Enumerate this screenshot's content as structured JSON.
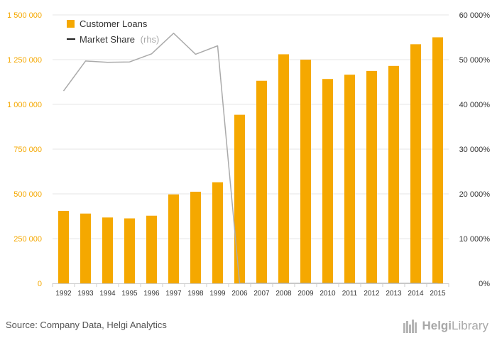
{
  "chart_data": {
    "type": "bar",
    "categories": [
      "1992",
      "1993",
      "1994",
      "1995",
      "1996",
      "1997",
      "1998",
      "1999",
      "2006",
      "2007",
      "2008",
      "2009",
      "2010",
      "2011",
      "2012",
      "2013",
      "2014",
      "2015"
    ],
    "series": [
      {
        "name": "Customer Loans",
        "type": "bar",
        "axis": "left",
        "color": "#f5a800",
        "values": [
          405000,
          390000,
          368000,
          363000,
          378000,
          497000,
          512000,
          565000,
          942000,
          1132000,
          1280000,
          1250000,
          1142000,
          1166000,
          1187000,
          1215000,
          1336000,
          1375000
        ]
      },
      {
        "name": "Market Share",
        "legend_suffix": "(rhs)",
        "type": "line",
        "axis": "right",
        "color": "#aaaaaa",
        "values": [
          43000,
          49700,
          49400,
          49500,
          51300,
          55900,
          51200,
          53100,
          0,
          0,
          0,
          0,
          0,
          0,
          0,
          0,
          0,
          0
        ]
      }
    ],
    "y_left": {
      "min": 0,
      "max": 1500000,
      "ticks": [
        0,
        250000,
        500000,
        750000,
        1000000,
        1250000,
        1500000
      ],
      "tick_labels": [
        "0",
        "250 000",
        "500 000",
        "750 000",
        "1 000 000",
        "1 250 000",
        "1 500 000"
      ],
      "tick_color": "#f5a800"
    },
    "y_right": {
      "min": 0,
      "max": 60000,
      "ticks": [
        0,
        10000,
        20000,
        30000,
        40000,
        50000,
        60000
      ],
      "tick_labels": [
        "0%",
        "10 000%",
        "20 000%",
        "30 000%",
        "40 000%",
        "50 000%",
        "60 000%"
      ],
      "tick_color": "#333333"
    },
    "grid": true,
    "legend_position": "top-left"
  },
  "footer": {
    "source": "Source: Company Data, Helgi Analytics",
    "logo_text_a": "Helgi",
    "logo_text_b": "Library"
  }
}
